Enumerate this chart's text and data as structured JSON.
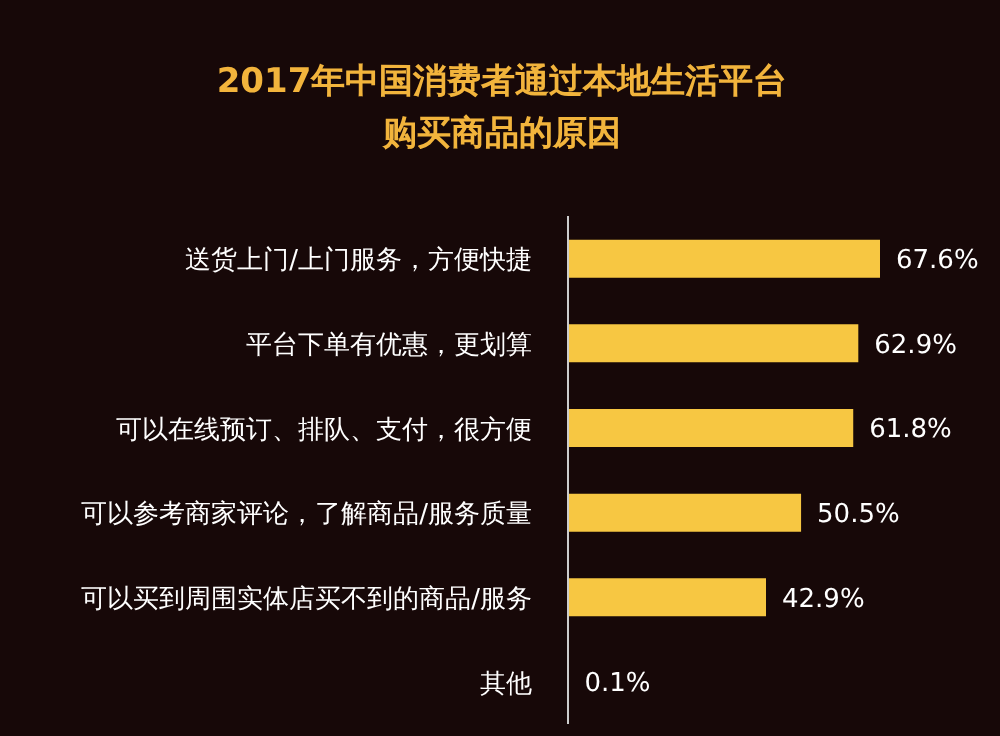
{
  "chart_data": {
    "type": "bar",
    "orientation": "horizontal",
    "title": "2017年中国消费者通过本地生活平台购买商品的原因",
    "categories": [
      "送货上门/上门服务，方便快捷",
      "平台下单有优惠，更划算",
      "可以在线预订、排队、支付，很方便",
      "可以参考商家评论，了解商品/服务质量",
      "可以买到周围实体店买不到的商品/服务",
      "其他"
    ],
    "values": [
      67.6,
      62.9,
      61.8,
      50.5,
      42.9,
      0.1
    ],
    "value_labels": [
      "67.6%",
      "62.9%",
      "61.8%",
      "50.5%",
      "42.9%",
      "0.1%"
    ],
    "color": "#f7c742",
    "grid": false,
    "legend": false,
    "tick_labels": "y"
  }
}
